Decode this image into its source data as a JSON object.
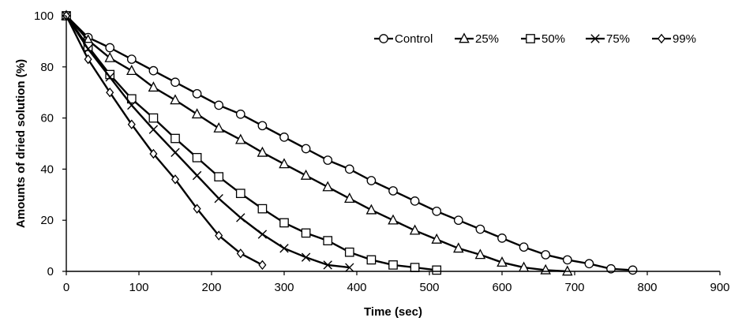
{
  "chart_data": {
    "type": "line",
    "title": "",
    "xlabel": "Time (sec)",
    "ylabel": "Amounts of dried solution  (%)",
    "xlim": [
      0,
      900
    ],
    "ylim": [
      0,
      100
    ],
    "xticks": [
      0,
      100,
      200,
      300,
      400,
      500,
      600,
      700,
      800,
      900
    ],
    "yticks": [
      0,
      20,
      40,
      60,
      80,
      100
    ],
    "grid": false,
    "legend_position": "top-right",
    "series": [
      {
        "name": "Control",
        "marker": "circle",
        "x": [
          0,
          30,
          60,
          90,
          120,
          150,
          180,
          210,
          240,
          270,
          300,
          330,
          360,
          390,
          420,
          450,
          480,
          510,
          540,
          570,
          600,
          630,
          660,
          690,
          720,
          750,
          780
        ],
        "y": [
          100,
          91.5,
          87.5,
          83,
          78.5,
          74,
          69.5,
          65,
          61.5,
          57,
          52.5,
          48,
          43.5,
          40,
          35.5,
          31.5,
          27.5,
          23.5,
          20,
          16.5,
          13,
          9.5,
          6.5,
          4.5,
          3,
          1,
          0.5
        ]
      },
      {
        "name": "25%",
        "marker": "triangle",
        "x": [
          0,
          30,
          60,
          90,
          120,
          150,
          180,
          210,
          240,
          270,
          300,
          330,
          360,
          390,
          420,
          450,
          480,
          510,
          540,
          570,
          600,
          630,
          660,
          690
        ],
        "y": [
          100,
          90.5,
          83.5,
          78.5,
          72,
          67,
          61.5,
          56,
          51.5,
          46.5,
          42,
          37.5,
          33,
          28.5,
          24,
          20,
          16,
          12.5,
          9,
          6.5,
          3.5,
          1.5,
          0.5,
          0
        ]
      },
      {
        "name": "50%",
        "marker": "square",
        "x": [
          0,
          30,
          60,
          90,
          120,
          150,
          180,
          210,
          240,
          270,
          300,
          330,
          360,
          390,
          420,
          450,
          480,
          510
        ],
        "y": [
          100,
          88,
          77,
          67.5,
          60,
          52,
          44.5,
          37,
          30.5,
          24.5,
          19,
          15,
          12,
          7.5,
          4.5,
          2.5,
          1.5,
          0.5
        ]
      },
      {
        "name": "75%",
        "marker": "x",
        "x": [
          0,
          30,
          60,
          90,
          120,
          150,
          180,
          210,
          240,
          270,
          300,
          330,
          360,
          390
        ],
        "y": [
          100,
          87,
          76,
          65,
          55.5,
          46.5,
          37.5,
          28.5,
          21,
          14.5,
          9,
          5.5,
          2.5,
          1.5
        ]
      },
      {
        "name": "99%",
        "marker": "diamond",
        "x": [
          0,
          30,
          60,
          90,
          120,
          150,
          180,
          210,
          240,
          270
        ],
        "y": [
          100,
          83,
          70,
          57.5,
          46,
          36,
          24.5,
          14,
          7,
          2.5
        ]
      }
    ]
  }
}
